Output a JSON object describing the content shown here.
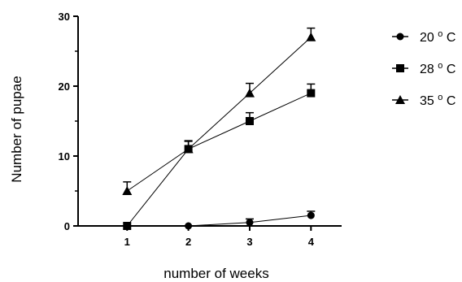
{
  "chart_data": {
    "type": "line",
    "xlabel": "number of weeks",
    "ylabel": "Number of pupae",
    "x": [
      1,
      2,
      3,
      4
    ],
    "xticks": [
      "1",
      "2",
      "3",
      "4"
    ],
    "xlim": [
      0.2,
      4.5
    ],
    "ylim": [
      0,
      30
    ],
    "yticks": [
      "0",
      "10",
      "20",
      "30"
    ],
    "grid": false,
    "legend_position": "right",
    "series": [
      {
        "name": "20",
        "unit": "C",
        "marker": "circle",
        "values": [
          0,
          0,
          0.5,
          1.5
        ],
        "errors": [
          0,
          0,
          0.5,
          0.6
        ]
      },
      {
        "name": "28",
        "unit": "C",
        "marker": "square",
        "values": [
          0,
          11,
          15,
          19
        ],
        "errors": [
          0,
          1.2,
          1.2,
          1.3
        ]
      },
      {
        "name": "35",
        "unit": "C",
        "marker": "triangle",
        "values": [
          5,
          11,
          19,
          27
        ],
        "errors": [
          1.3,
          1.1,
          1.4,
          1.3
        ]
      }
    ]
  }
}
